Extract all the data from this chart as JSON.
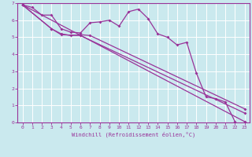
{
  "xlabel": "Windchill (Refroidissement éolien,°C)",
  "background_color": "#cae9ee",
  "grid_color": "#ffffff",
  "line_color": "#993399",
  "xlim": [
    -0.5,
    23.5
  ],
  "ylim": [
    0,
    7
  ],
  "xticks": [
    0,
    1,
    2,
    3,
    4,
    5,
    6,
    7,
    8,
    9,
    10,
    11,
    12,
    13,
    14,
    15,
    16,
    17,
    18,
    19,
    20,
    21,
    22,
    23
  ],
  "yticks": [
    0,
    1,
    2,
    3,
    4,
    5,
    6,
    7
  ],
  "line1_x": [
    0,
    1,
    2,
    3,
    4,
    5,
    6,
    7,
    8,
    9,
    10,
    11,
    12,
    13,
    14,
    15,
    16,
    17,
    18,
    19,
    20,
    21,
    22
  ],
  "line1_y": [
    6.9,
    6.75,
    6.3,
    6.3,
    5.5,
    5.3,
    5.25,
    5.85,
    5.9,
    6.0,
    5.65,
    6.5,
    6.65,
    6.1,
    5.2,
    5.0,
    4.55,
    4.7,
    2.9,
    1.5,
    1.4,
    1.2,
    0.05
  ],
  "line2_x": [
    0,
    23
  ],
  "line2_y": [
    6.9,
    0.05
  ],
  "line3_x": [
    0,
    3,
    4,
    5,
    6,
    7,
    23
  ],
  "line3_y": [
    6.9,
    5.5,
    5.2,
    5.1,
    5.15,
    5.1,
    0.8
  ],
  "line4_x": [
    0,
    3,
    4,
    6,
    23
  ],
  "line4_y": [
    6.9,
    5.5,
    5.15,
    5.1,
    0.55
  ]
}
